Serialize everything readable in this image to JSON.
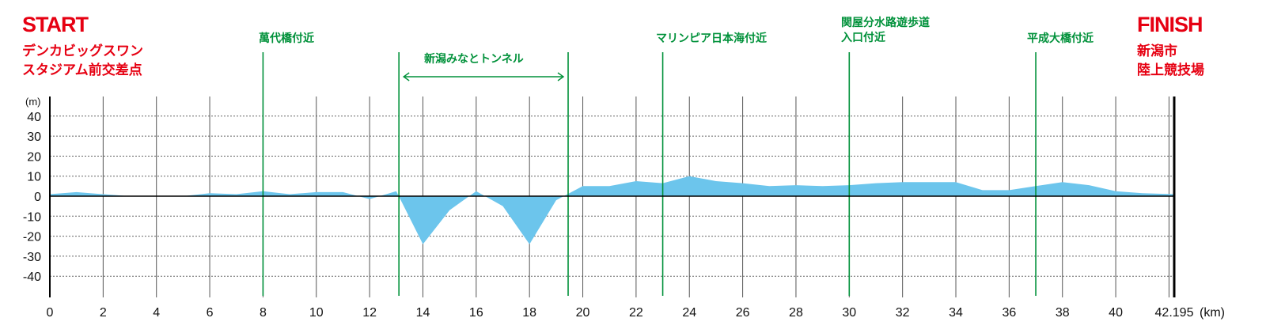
{
  "start": {
    "title": "START",
    "lines": [
      "デンカビッグスワン",
      "スタジアム前交差点"
    ]
  },
  "finish": {
    "title": "FINISH",
    "lines": [
      "新潟市",
      "陸上競技場"
    ]
  },
  "colors": {
    "fill": "#6cc5ec",
    "grid": "#666666",
    "axis": "#000000",
    "marker": "#00913a",
    "accent": "#e60012"
  },
  "chart_data": {
    "type": "area",
    "xlabel": "(km)",
    "ylabel": "(m)",
    "xlim": [
      0,
      42.195
    ],
    "ylim": [
      -50,
      50
    ],
    "x_ticks": [
      "0",
      "2",
      "4",
      "6",
      "8",
      "10",
      "12",
      "14",
      "16",
      "18",
      "20",
      "22",
      "24",
      "26",
      "28",
      "30",
      "32",
      "34",
      "36",
      "38",
      "40",
      "42.195"
    ],
    "y_ticks": [
      "40",
      "30",
      "20",
      "10",
      "0",
      "-10",
      "-20",
      "-30",
      "-40"
    ],
    "grid": true,
    "series": [
      {
        "x": [
          0,
          1,
          2,
          3,
          4,
          5,
          6,
          7,
          8,
          9,
          10,
          11,
          12,
          13,
          14,
          15,
          16,
          17,
          18,
          19,
          20,
          21,
          22,
          23,
          24,
          25,
          26,
          27,
          28,
          29,
          30,
          31,
          32,
          33,
          34,
          35,
          36,
          37,
          38,
          39,
          40,
          41,
          42.195
        ],
        "y": [
          1,
          2,
          1,
          0,
          0,
          0,
          1.5,
          1,
          2.5,
          1,
          2,
          2,
          -1.5,
          2.5,
          -24,
          -7,
          2.5,
          -5,
          -24,
          -2,
          5,
          5,
          7.5,
          6.5,
          10,
          7.5,
          6.5,
          5,
          5.5,
          5,
          5.5,
          6.5,
          7,
          7,
          7,
          3,
          3,
          5,
          7,
          5.5,
          2.5,
          1.5,
          1
        ]
      }
    ],
    "markers": [
      {
        "x": 8,
        "label": "萬代橋付近"
      },
      {
        "x": 13.1,
        "label": ""
      },
      {
        "x": 19.45,
        "label": ""
      },
      {
        "x": 23,
        "label": "マリンピア日本海付近"
      },
      {
        "x": 30,
        "label": "関屋分水路遊歩道\n入口付近"
      },
      {
        "x": 37,
        "label": "平成大橋付近"
      }
    ],
    "tunnel": {
      "from": 13.1,
      "to": 19.45,
      "label": "新潟みなとトンネル"
    }
  }
}
